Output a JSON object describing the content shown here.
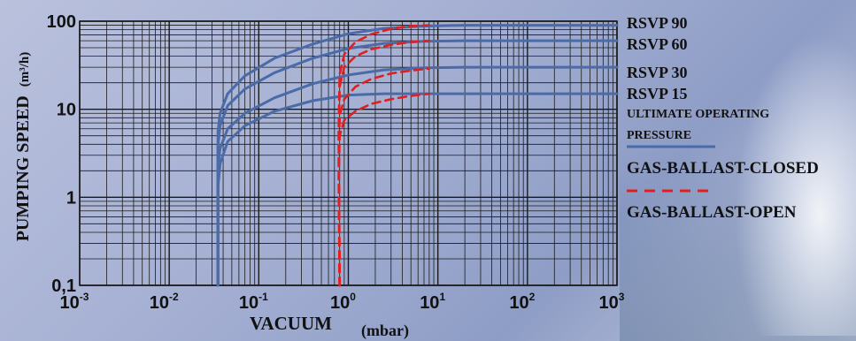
{
  "chart_data": {
    "type": "line",
    "xscale": "log",
    "yscale": "log",
    "xlim": [
      0.001,
      1000
    ],
    "ylim": [
      0.1,
      100
    ],
    "xlabel": "VACUUM",
    "xunit": "(mbar)",
    "ylabel": "PUMPING SPEED",
    "yunit": "(m³/h)",
    "x_ticks": [
      {
        "base": "10",
        "exp": "-3"
      },
      {
        "base": "10",
        "exp": "-2"
      },
      {
        "base": "10",
        "exp": "-1"
      },
      {
        "base": "10",
        "exp": "0"
      },
      {
        "base": "10",
        "exp": "1"
      },
      {
        "base": "10",
        "exp": "2"
      },
      {
        "base": "10",
        "exp": "3"
      }
    ],
    "y_ticks": [
      "0,1",
      "1",
      "10",
      "100"
    ],
    "grid": true,
    "colors": {
      "closed": "#4a6aa8",
      "open": "#e02020",
      "grid": "#1a1a1a"
    },
    "series": [
      {
        "name": "RSVP 90",
        "gas_ballast": "closed",
        "x": [
          0.035,
          0.035,
          0.037,
          0.045,
          0.07,
          0.15,
          0.4,
          1,
          2.5,
          7,
          20,
          1000
        ],
        "y": [
          0.1,
          5.5,
          9,
          15,
          24,
          38,
          55,
          72,
          83,
          88,
          90,
          90
        ]
      },
      {
        "name": "RSVP 60",
        "gas_ballast": "closed",
        "x": [
          0.035,
          0.035,
          0.037,
          0.045,
          0.07,
          0.15,
          0.4,
          1,
          2.5,
          7,
          20,
          1000
        ],
        "y": [
          0.1,
          3.8,
          6.5,
          11,
          17,
          26,
          38,
          49,
          56,
          59,
          60,
          60
        ]
      },
      {
        "name": "RSVP 30",
        "gas_ballast": "closed",
        "x": [
          0.035,
          0.035,
          0.037,
          0.045,
          0.07,
          0.15,
          0.4,
          1,
          2.5,
          7,
          20,
          1000
        ],
        "y": [
          0.1,
          2.2,
          3.6,
          6.0,
          9.0,
          13.5,
          19.5,
          24.5,
          28,
          29.5,
          30,
          30
        ]
      },
      {
        "name": "RSVP 15",
        "gas_ballast": "closed",
        "x": [
          0.035,
          0.035,
          0.037,
          0.045,
          0.07,
          0.15,
          0.4,
          1,
          2.5,
          7,
          20,
          1000
        ],
        "y": [
          0.1,
          1.3,
          2.4,
          4.3,
          6.5,
          9.5,
          12.5,
          14.5,
          15,
          15,
          15,
          15
        ]
      },
      {
        "name": "RSVP 90",
        "gas_ballast": "open",
        "x": [
          0.8,
          0.78,
          0.8,
          0.9,
          1.2,
          1.8,
          3,
          5,
          8
        ],
        "y": [
          0.1,
          6,
          25,
          42,
          58,
          71,
          82,
          88,
          90
        ]
      },
      {
        "name": "RSVP 60",
        "gas_ballast": "open",
        "x": [
          0.8,
          0.78,
          0.8,
          0.9,
          1.2,
          1.8,
          3,
          5,
          8
        ],
        "y": [
          0.1,
          4.5,
          18,
          30,
          40,
          48,
          54,
          58,
          60
        ]
      },
      {
        "name": "RSVP 30",
        "gas_ballast": "open",
        "x": [
          0.8,
          0.78,
          0.8,
          0.9,
          1.2,
          1.8,
          3,
          5,
          8
        ],
        "y": [
          0.1,
          2.5,
          8.5,
          13,
          18,
          22,
          25.5,
          27.5,
          29
        ]
      },
      {
        "name": "RSVP 15",
        "gas_ballast": "open",
        "x": [
          0.8,
          0.78,
          0.8,
          0.9,
          1.2,
          1.8,
          3,
          5,
          8
        ],
        "y": [
          0.1,
          1.6,
          5,
          7.5,
          9.5,
          11.5,
          13,
          14.2,
          15
        ]
      }
    ],
    "legend": {
      "ultimate_line1": "ULTIMATE OPERATING",
      "ultimate_line2": "PRESSURE",
      "closed": "GAS-BALLAST-CLOSED",
      "open": "GAS-BALLAST-OPEN"
    }
  }
}
